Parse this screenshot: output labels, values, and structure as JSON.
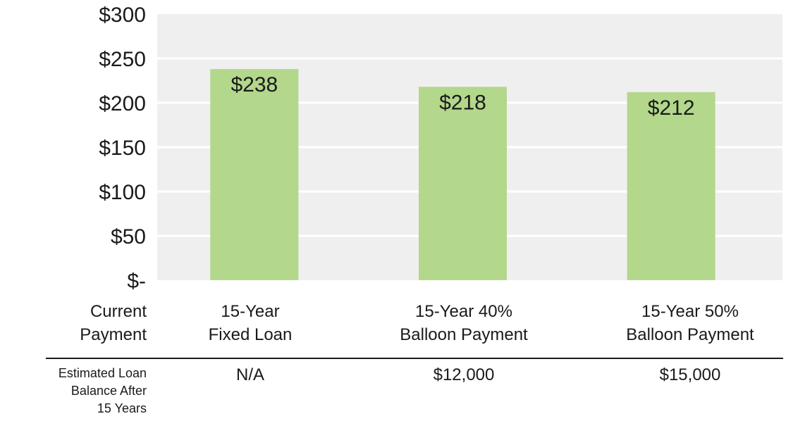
{
  "chart_data": {
    "type": "bar",
    "categories": [
      "15-Year Fixed Loan",
      "15-Year 40% Balloon Payment",
      "15-Year 50% Balloon Payment"
    ],
    "values": [
      238,
      218,
      212
    ],
    "value_labels": [
      "$238",
      "$218",
      "$212"
    ],
    "ylim": [
      0,
      300
    ],
    "yticks": [
      0,
      50,
      100,
      150,
      200,
      250,
      300
    ],
    "ytick_labels": [
      "$-",
      "$50",
      "$100",
      "$150",
      "$200",
      "$250",
      "$300"
    ],
    "grid": true,
    "colors": {
      "bar": "#b3d78b",
      "plot_bg": "#efefef",
      "grid": "#ffffff"
    }
  },
  "table": {
    "row1_label": [
      "Current",
      "Payment"
    ],
    "row1_cells": [
      [
        "15-Year",
        "Fixed Loan"
      ],
      [
        "15-Year 40%",
        "Balloon Payment"
      ],
      [
        "15-Year 50%",
        "Balloon Payment"
      ]
    ],
    "row2_label": [
      "Estimated Loan",
      "Balance After",
      "15 Years"
    ],
    "row2_cells": [
      "N/A",
      "$12,000",
      "$15,000"
    ]
  }
}
